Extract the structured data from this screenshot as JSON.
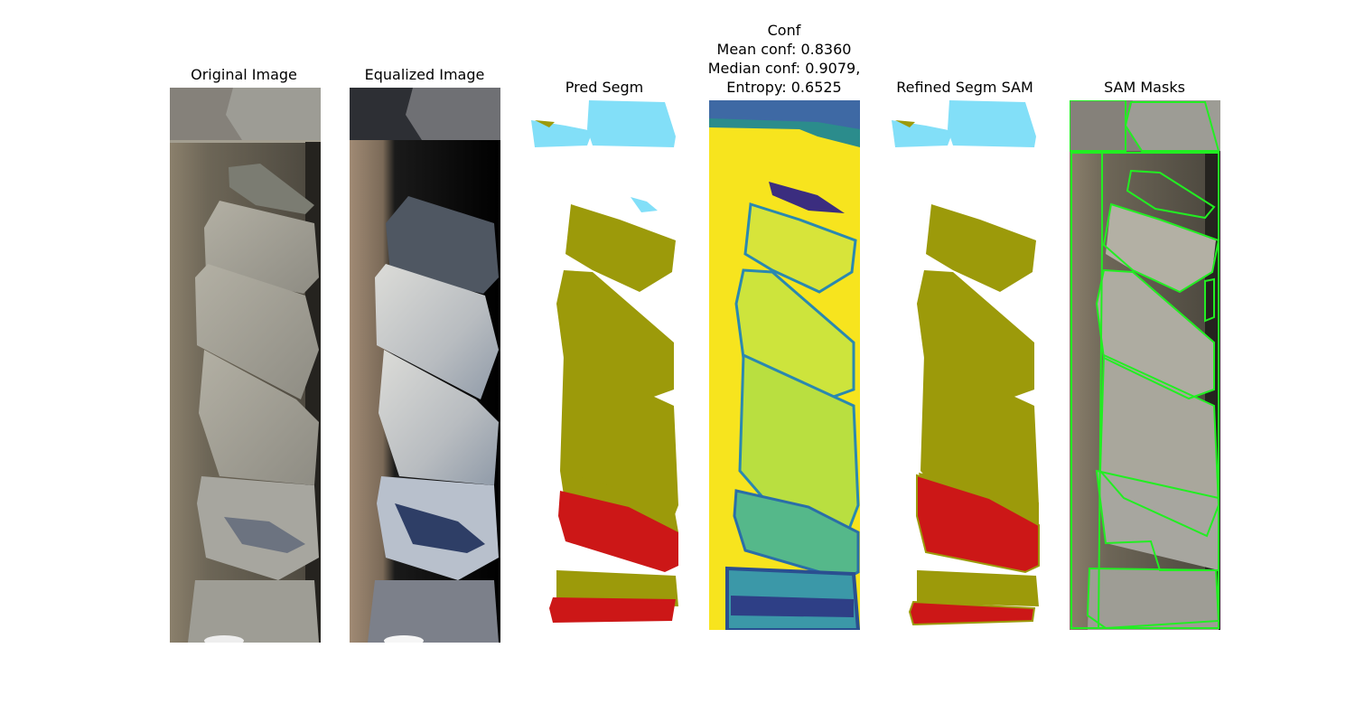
{
  "figure": {
    "panels": [
      {
        "id": "original",
        "title": "Original Image"
      },
      {
        "id": "equalized",
        "title": "Equalized Image"
      },
      {
        "id": "pred",
        "title": "Pred Segm"
      },
      {
        "id": "conf",
        "title_lines": [
          "Conf",
          "Mean conf: 0.8360",
          "Median conf: 0.9079,",
          "Entropy: 0.6525"
        ]
      },
      {
        "id": "refined",
        "title": "Refined Segm SAM"
      },
      {
        "id": "sam",
        "title": "SAM Masks"
      }
    ],
    "colors": {
      "class_olive": "#9c9a0a",
      "class_red": "#cc1717",
      "class_cyan": "#82dff8",
      "mask_outline": "#22ee22",
      "conf_high": "#f7e41e",
      "conf_low": "#3b2d7f"
    }
  }
}
